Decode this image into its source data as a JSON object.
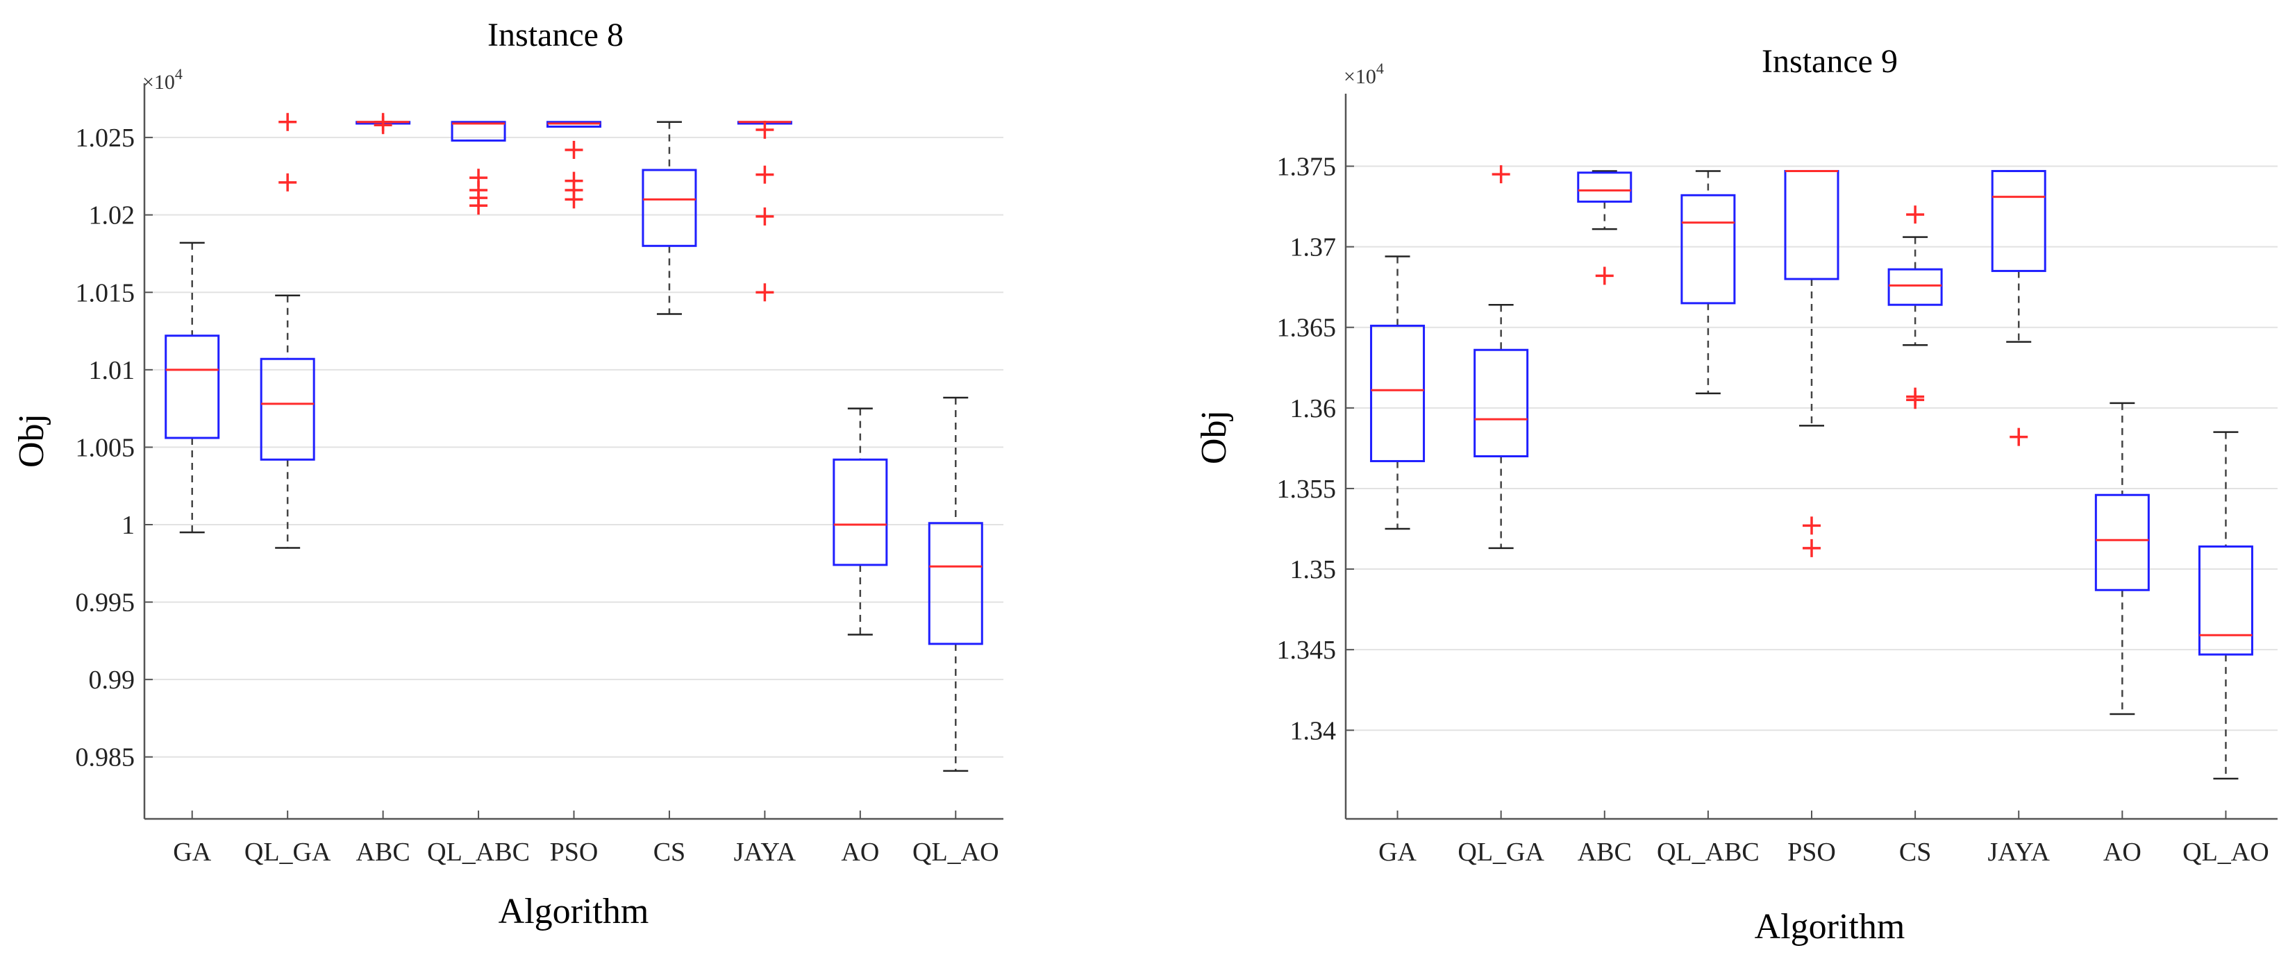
{
  "colors": {
    "box": "#1f1fff",
    "median": "#ff2b2b",
    "outlier": "#ff2b2b",
    "whisker": "#444444",
    "grid": "#e2e2e2",
    "axis": "#555555"
  },
  "chart_data": [
    {
      "type": "box",
      "title": "Instance 8",
      "xlabel": "Algorithm",
      "ylabel": "Obj",
      "exponent_label": "×10",
      "exponent_power": "4",
      "ylim": [
        0.981,
        1.0285
      ],
      "yticks": [
        0.985,
        0.99,
        0.995,
        1,
        1.005,
        1.01,
        1.015,
        1.02,
        1.025
      ],
      "ytick_labels": [
        "0.985",
        "0.99",
        "0.995",
        "1",
        "1.005",
        "1.01",
        "1.015",
        "1.02",
        "1.025"
      ],
      "grid": true,
      "categories": [
        "GA",
        "QL_GA",
        "ABC",
        "QL_ABC",
        "PSO",
        "CS",
        "JAYA",
        "AO",
        "QL_AO"
      ],
      "boxes": [
        {
          "name": "GA",
          "whisker_low": 0.9995,
          "q1": 1.0056,
          "median": 1.01,
          "q3": 1.0122,
          "whisker_high": 1.0182,
          "outliers": []
        },
        {
          "name": "QL_GA",
          "whisker_low": 0.9985,
          "q1": 1.0042,
          "median": 1.0078,
          "q3": 1.0107,
          "whisker_high": 1.0148,
          "outliers": [
            1.0221,
            1.026
          ]
        },
        {
          "name": "ABC",
          "whisker_low": 1.0259,
          "q1": 1.0259,
          "median": 1.026,
          "q3": 1.026,
          "whisker_high": 1.026,
          "outliers": [
            1.0258,
            1.026
          ]
        },
        {
          "name": "QL_ABC",
          "whisker_low": 1.0248,
          "q1": 1.0248,
          "median": 1.0259,
          "q3": 1.026,
          "whisker_high": 1.026,
          "outliers": [
            1.0224,
            1.0216,
            1.0211,
            1.0206
          ]
        },
        {
          "name": "PSO",
          "whisker_low": 1.0257,
          "q1": 1.0257,
          "median": 1.0259,
          "q3": 1.026,
          "whisker_high": 1.026,
          "outliers": [
            1.0242,
            1.0222,
            1.0216,
            1.021
          ]
        },
        {
          "name": "CS",
          "whisker_low": 1.0136,
          "q1": 1.018,
          "median": 1.021,
          "q3": 1.0229,
          "whisker_high": 1.026,
          "outliers": []
        },
        {
          "name": "JAYA",
          "whisker_low": 1.0259,
          "q1": 1.0259,
          "median": 1.026,
          "q3": 1.026,
          "whisker_high": 1.026,
          "outliers": [
            1.0255,
            1.0226,
            1.0199,
            1.015
          ]
        },
        {
          "name": "AO",
          "whisker_low": 0.9929,
          "q1": 0.9974,
          "median": 1.0,
          "q3": 1.0042,
          "whisker_high": 1.0075,
          "outliers": []
        },
        {
          "name": "QL_AO",
          "whisker_low": 0.9841,
          "q1": 0.9923,
          "median": 0.9973,
          "q3": 1.0001,
          "whisker_high": 1.0082,
          "outliers": []
        }
      ]
    },
    {
      "type": "box",
      "title": "Instance 9",
      "xlabel": "Algorithm",
      "ylabel": "Obj",
      "exponent_label": "×10",
      "exponent_power": "4",
      "ylim": [
        1.3345,
        1.3795
      ],
      "yticks": [
        1.34,
        1.345,
        1.35,
        1.355,
        1.36,
        1.365,
        1.37,
        1.375
      ],
      "ytick_labels": [
        "1.34",
        "1.345",
        "1.35",
        "1.355",
        "1.36",
        "1.365",
        "1.37",
        "1.375"
      ],
      "grid": true,
      "categories": [
        "GA",
        "QL_GA",
        "ABC",
        "QL_ABC",
        "PSO",
        "CS",
        "JAYA",
        "AO",
        "QL_AO"
      ],
      "boxes": [
        {
          "name": "GA",
          "whisker_low": 1.3525,
          "q1": 1.3567,
          "median": 1.3611,
          "q3": 1.3651,
          "whisker_high": 1.3694,
          "outliers": []
        },
        {
          "name": "QL_GA",
          "whisker_low": 1.3513,
          "q1": 1.357,
          "median": 1.3593,
          "q3": 1.3636,
          "whisker_high": 1.3664,
          "outliers": [
            1.3745
          ]
        },
        {
          "name": "ABC",
          "whisker_low": 1.3711,
          "q1": 1.3728,
          "median": 1.3735,
          "q3": 1.3746,
          "whisker_high": 1.3747,
          "outliers": [
            1.3682
          ]
        },
        {
          "name": "QL_ABC",
          "whisker_low": 1.3609,
          "q1": 1.3665,
          "median": 1.3715,
          "q3": 1.3732,
          "whisker_high": 1.3747,
          "outliers": []
        },
        {
          "name": "PSO",
          "whisker_low": 1.3589,
          "q1": 1.368,
          "median": 1.3747,
          "q3": 1.3747,
          "whisker_high": 1.3747,
          "outliers": [
            1.3527,
            1.3513
          ]
        },
        {
          "name": "CS",
          "whisker_low": 1.3639,
          "q1": 1.3664,
          "median": 1.3676,
          "q3": 1.3686,
          "whisker_high": 1.3706,
          "outliers": [
            1.372,
            1.3607,
            1.3605
          ]
        },
        {
          "name": "JAYA",
          "whisker_low": 1.3641,
          "q1": 1.3685,
          "median": 1.3731,
          "q3": 1.3747,
          "whisker_high": 1.3747,
          "outliers": [
            1.3582
          ]
        },
        {
          "name": "AO",
          "whisker_low": 1.341,
          "q1": 1.3487,
          "median": 1.3518,
          "q3": 1.3546,
          "whisker_high": 1.3603,
          "outliers": []
        },
        {
          "name": "QL_AO",
          "whisker_low": 1.337,
          "q1": 1.3447,
          "median": 1.3459,
          "q3": 1.3514,
          "whisker_high": 1.3585,
          "outliers": []
        }
      ]
    }
  ]
}
